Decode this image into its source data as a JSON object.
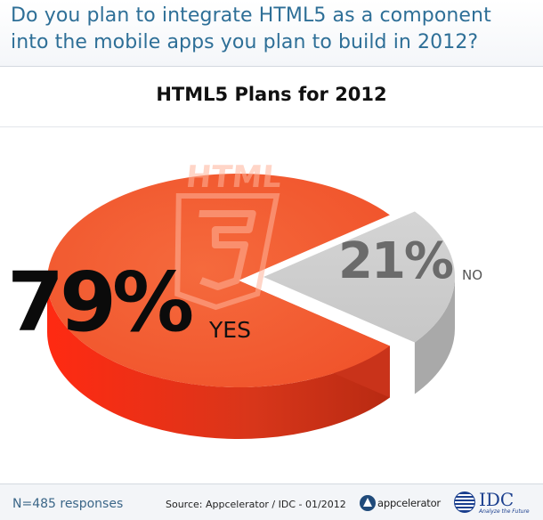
{
  "header": {
    "question_line1": "Do you plan to integrate HTML5 as a component",
    "question_line2": "into the mobile apps you plan to build in 2012?"
  },
  "chart_data": {
    "type": "pie",
    "title": "HTML5 Plans for 2012",
    "slices": [
      {
        "label": "YES",
        "value": 79,
        "display": "79%",
        "color": "#f0522a"
      },
      {
        "label": "NO",
        "value": 21,
        "display": "21%",
        "color": "#c7c7c7"
      }
    ],
    "style": "3d-exploded",
    "emblem": "HTML"
  },
  "footer": {
    "responses": "N=485 responses",
    "source": "Source: Appcelerator / IDC - 01/2012",
    "logo_appcelerator": "appcelerator",
    "logo_idc": "IDC",
    "logo_idc_tagline": "Analyze the Future"
  },
  "colors": {
    "question_text": "#2e6f97",
    "yes_top": "#f0522a",
    "yes_side": "#d8361a",
    "no_top": "#c7c7c7",
    "no_side": "#a9a9a9"
  }
}
